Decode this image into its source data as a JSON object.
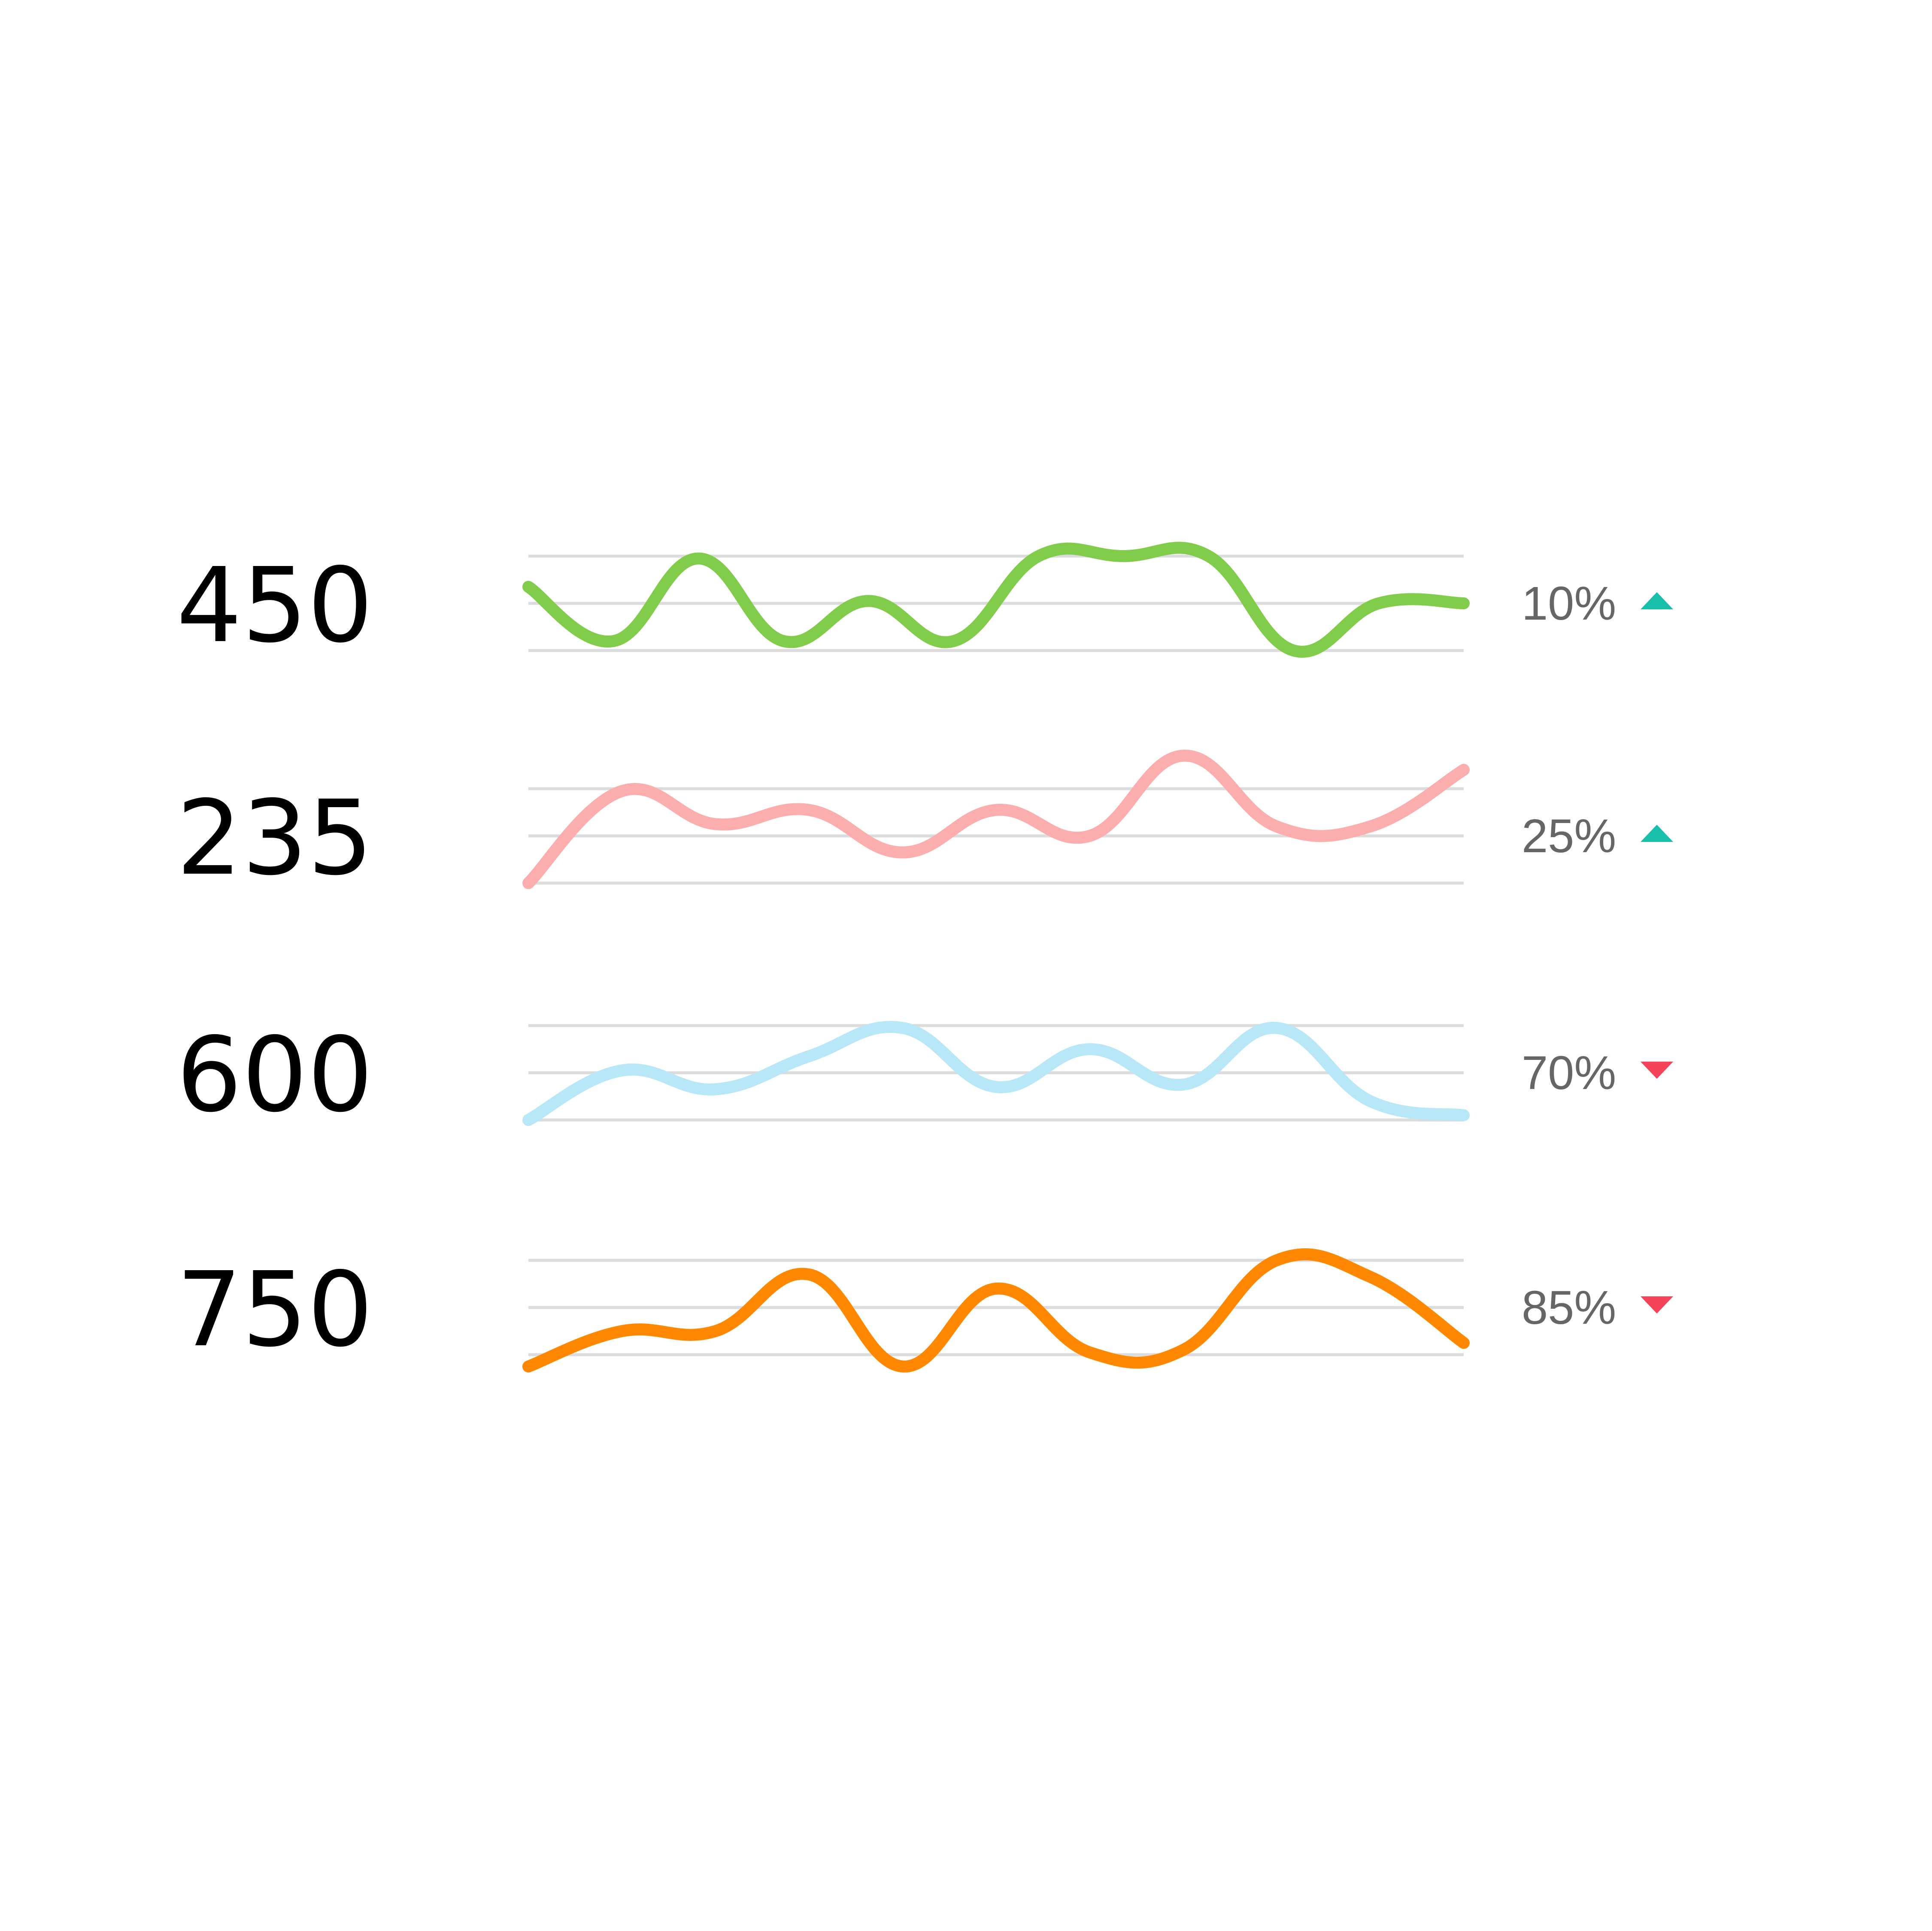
{
  "chart_data": {
    "type": "line",
    "rows": [
      {
        "value": "450",
        "change": "10%",
        "trend": "up",
        "trend_icon": "triangle-up-icon",
        "color": "#82cc4c",
        "trend_color": "#1abfab",
        "y": [
          0.35,
          -0.8,
          0.95,
          -0.8,
          0.05,
          -0.8,
          1.0,
          1.0,
          1.0,
          -1.0,
          0.0,
          0.0
        ]
      },
      {
        "value": "235",
        "change": "25%",
        "trend": "up",
        "trend_icon": "triangle-up-icon",
        "color": "#fcaeae",
        "trend_color": "#1abfab",
        "y": [
          -1.0,
          0.95,
          0.25,
          0.55,
          -0.35,
          0.55,
          0.0,
          1.7,
          0.2,
          0.2,
          1.4
        ]
      },
      {
        "value": "600",
        "change": "70%",
        "trend": "down",
        "trend_icon": "triangle-down-icon",
        "color": "#b8e8f8",
        "trend_color": "#f54359",
        "y": [
          -1.0,
          0.05,
          -0.35,
          0.35,
          0.95,
          -0.3,
          0.5,
          -0.25,
          0.95,
          -0.6,
          -0.9
        ]
      },
      {
        "value": "750",
        "change": "85%",
        "trend": "down",
        "trend_icon": "triangle-down-icon",
        "color": "#ff8800",
        "trend_color": "#f54359",
        "y": [
          -1.25,
          -0.5,
          -0.5,
          0.7,
          -1.25,
          0.4,
          -0.95,
          -0.9,
          1.0,
          0.65,
          -0.75
        ]
      }
    ]
  }
}
